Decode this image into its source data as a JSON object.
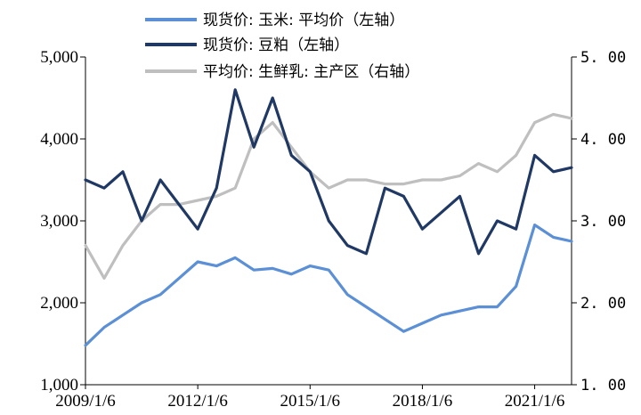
{
  "chart_data": {
    "type": "line",
    "x": [
      "2009/1/6",
      "2009/7/6",
      "2010/1/6",
      "2010/7/6",
      "2011/1/6",
      "2011/7/6",
      "2012/1/6",
      "2012/7/6",
      "2013/1/6",
      "2013/7/6",
      "2014/1/6",
      "2014/7/6",
      "2015/1/6",
      "2015/7/6",
      "2016/1/6",
      "2016/7/6",
      "2017/1/6",
      "2017/7/6",
      "2018/1/6",
      "2018/7/6",
      "2019/1/6",
      "2019/7/6",
      "2020/1/6",
      "2020/7/6",
      "2021/1/6",
      "2021/7/6",
      "2021/12/31"
    ],
    "x_tick_labels": [
      "2009/1/6",
      "2012/1/6",
      "2015/1/6",
      "2018/1/6",
      "2021/1/6"
    ],
    "series": [
      {
        "name": "现货价: 玉米: 平均价（左轴）",
        "axis": "left",
        "color": "#5b8fd6",
        "values": [
          1480,
          1700,
          1850,
          2000,
          2100,
          2300,
          2500,
          2450,
          2550,
          2400,
          2420,
          2350,
          2450,
          2400,
          2100,
          1950,
          1800,
          1650,
          1750,
          1850,
          1900,
          1950,
          1950,
          2200,
          2950,
          2800,
          2750
        ]
      },
      {
        "name": "现货价: 豆粕（左轴）",
        "axis": "left",
        "color": "#1f3864",
        "values": [
          3500,
          3400,
          3600,
          3000,
          3500,
          3200,
          2900,
          3400,
          4600,
          3900,
          4500,
          3800,
          3600,
          3000,
          2700,
          2600,
          3400,
          3300,
          2900,
          3100,
          3300,
          2600,
          3000,
          2900,
          3800,
          3600,
          3650
        ]
      },
      {
        "name": "平均价: 生鲜乳: 主产区（右轴）",
        "axis": "right",
        "color": "#bfbfbf",
        "values": [
          2.7,
          2.3,
          2.7,
          3.0,
          3.2,
          3.2,
          3.25,
          3.3,
          3.4,
          4.0,
          4.2,
          3.9,
          3.6,
          3.4,
          3.5,
          3.5,
          3.45,
          3.45,
          3.5,
          3.5,
          3.55,
          3.7,
          3.6,
          3.8,
          4.2,
          4.3,
          4.25
        ]
      }
    ],
    "y_left": {
      "min": 1000,
      "max": 5000,
      "ticks": [
        "1,000",
        "2,000",
        "3,000",
        "4,000",
        "5,000"
      ]
    },
    "y_right": {
      "min": 1.0,
      "max": 5.0,
      "ticks": [
        "1. 00",
        "2. 00",
        "3. 00",
        "4. 00",
        "5. 00"
      ]
    },
    "legend_placement": "top-center",
    "grid": false
  }
}
